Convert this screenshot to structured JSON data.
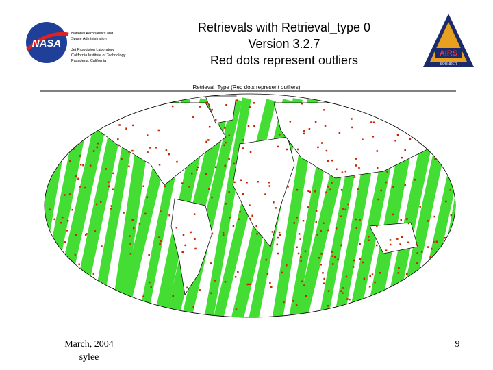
{
  "header": {
    "org_lines": [
      "National Aeronautics and",
      "Space Administration",
      "Jet Propulsion Laboratory",
      "California Institute of Technology",
      "Pasadena, California"
    ],
    "nasa_logo": "NASA",
    "title_lines": [
      "Retrievals with Retrieval_type 0",
      "Version 3.2.7",
      "Red dots represent outliers"
    ],
    "airs_logo": "AIRS",
    "airs_sub": "SOUNDER"
  },
  "map": {
    "caption": "Retrieval_Type (Red dots represent outliers)"
  },
  "footer": {
    "date": "March, 2004",
    "author": "sylee",
    "page": "9"
  }
}
